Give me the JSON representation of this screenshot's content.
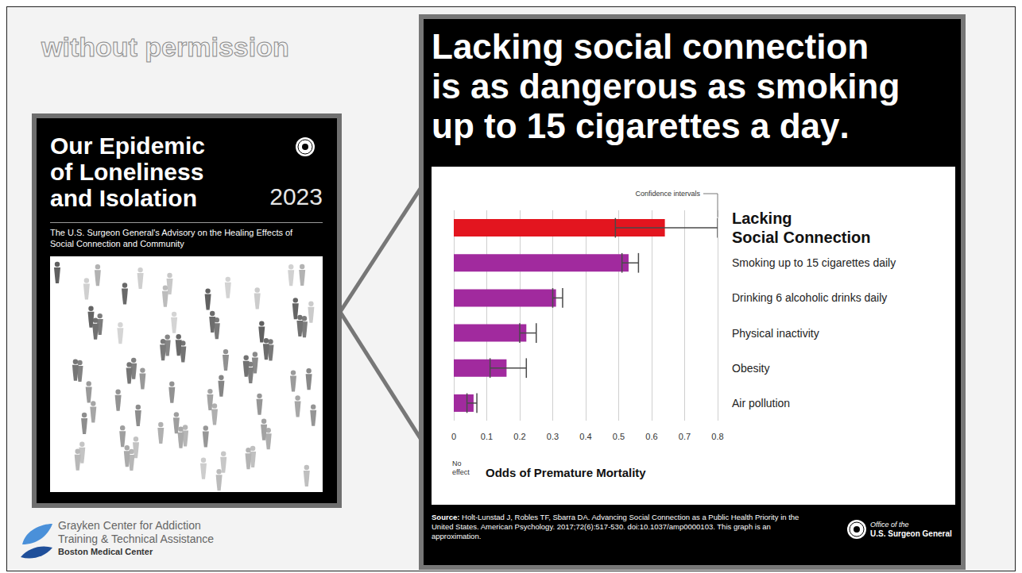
{
  "watermark": "without permission",
  "cover": {
    "title": "Our Epidemic of Loneliness and Isolation",
    "year": "2023",
    "subtitle": "The U.S. Surgeon General's Advisory on the Healing Effects of Social Connection and Community"
  },
  "chart_data": {
    "type": "bar",
    "orientation": "horizontal",
    "title": "Lacking social connection is as dangerous as smoking up to 15 cigarettes a day.",
    "categories": [
      "Lacking Social Connection",
      "Smoking up to 15 cigarettes daily",
      "Drinking 6 alcoholic drinks daily",
      "Physical inactivity",
      "Obesity",
      "Air pollution"
    ],
    "values": [
      0.64,
      0.53,
      0.31,
      0.22,
      0.16,
      0.06
    ],
    "ci_low": [
      0.49,
      0.51,
      0.3,
      0.2,
      0.11,
      0.04
    ],
    "ci_high": [
      0.8,
      0.56,
      0.33,
      0.25,
      0.22,
      0.07
    ],
    "colors": [
      "#e3151f",
      "#a12a9e",
      "#a12a9e",
      "#a12a9e",
      "#a12a9e",
      "#a12a9e"
    ],
    "xlabel": "Odds of Premature Mortality",
    "xlim": [
      0,
      0.8
    ],
    "xticks": [
      0,
      0.1,
      0.2,
      0.3,
      0.4,
      0.5,
      0.6,
      0.7,
      0.8
    ],
    "grid": true,
    "annotations": [
      "Confidence intervals",
      "No effect"
    ],
    "source": "Source: Holt-Lunstad J, Robles TF, Sbarra DA. Advancing Social Connection as a Public Health Priority in the United States. American Psychology. 2017;72(6):517-530. doi:10.1037/amp0000103. This graph is an approximation."
  },
  "logos": {
    "publisher": [
      "Office of the",
      "U.S. Surgeon General"
    ],
    "center": [
      "Grayken Center for Addiction",
      "Training & Technical Assistance",
      "Boston Medical Center"
    ]
  }
}
